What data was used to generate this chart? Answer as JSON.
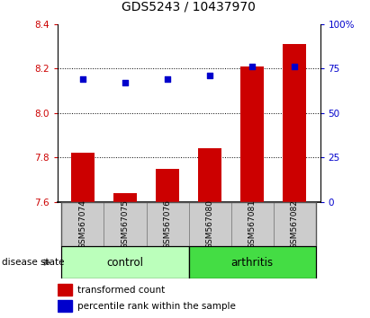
{
  "title": "GDS5243 / 10437970",
  "samples": [
    "GSM567074",
    "GSM567075",
    "GSM567076",
    "GSM567080",
    "GSM567081",
    "GSM567082"
  ],
  "bar_values": [
    7.82,
    7.64,
    7.75,
    7.84,
    8.21,
    8.31
  ],
  "bar_base": 7.6,
  "dot_values": [
    69,
    67,
    69,
    71,
    76,
    76
  ],
  "bar_color": "#cc0000",
  "dot_color": "#0000cc",
  "ylim_left": [
    7.6,
    8.4
  ],
  "ylim_right": [
    0,
    100
  ],
  "yticks_left": [
    7.6,
    7.8,
    8.0,
    8.2,
    8.4
  ],
  "yticks_right": [
    0,
    25,
    50,
    75,
    100
  ],
  "ytick_labels_right": [
    "0",
    "25",
    "50",
    "75",
    "100%"
  ],
  "grid_values": [
    7.8,
    8.0,
    8.2
  ],
  "control_color": "#bbffbb",
  "arthritis_color": "#44dd44",
  "sample_box_color": "#cccccc",
  "sample_box_edge": "#888888",
  "label_transformed": "transformed count",
  "label_percentile": "percentile rank within the sample",
  "disease_state_label": "disease state",
  "title_fontsize": 10,
  "tick_fontsize": 7.5,
  "sample_fontsize": 6.5,
  "group_fontsize": 8.5,
  "legend_fontsize": 7.5,
  "ds_fontsize": 7.5
}
